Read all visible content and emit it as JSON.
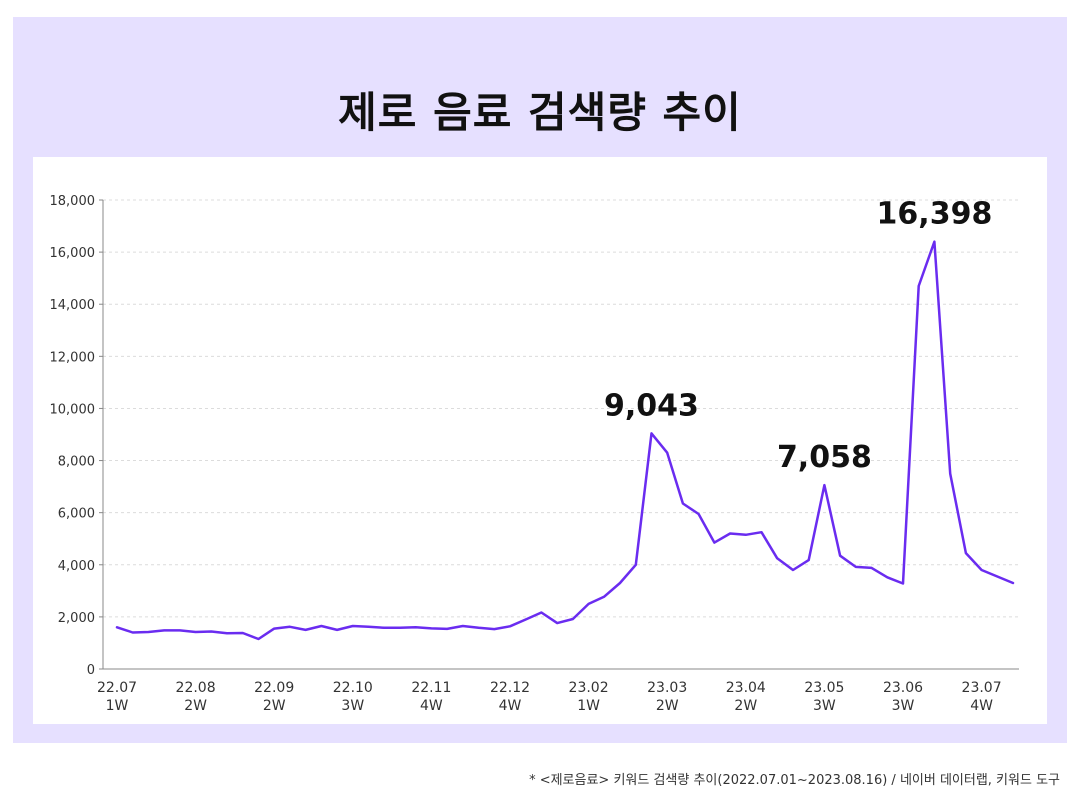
{
  "title": "제로 음료 검색량 추이",
  "footnote": "* <제로음료> 키워드 검색량 추이(2022.07.01~2023.08.16) / 네이버 데이터랩, 키워드 도구",
  "colors": {
    "background": "#e6e0ff",
    "line": "#6a2cf0",
    "panel": "#ffffff"
  },
  "chart_data": {
    "type": "line",
    "ylim": [
      0,
      18000
    ],
    "yticks": [
      "0",
      "2,000",
      "4,000",
      "6,000",
      "8,000",
      "10,000",
      "12,000",
      "14,000",
      "16,000",
      "18,000"
    ],
    "ytick_values": [
      0,
      2000,
      4000,
      6000,
      8000,
      10000,
      12000,
      14000,
      16000,
      18000
    ],
    "xtick_labels": [
      {
        "top": "22.07",
        "bottom": "1W",
        "index": 0
      },
      {
        "top": "22.08",
        "bottom": "2W",
        "index": 5
      },
      {
        "top": "22.09",
        "bottom": "2W",
        "index": 10
      },
      {
        "top": "22.10",
        "bottom": "3W",
        "index": 15
      },
      {
        "top": "22.11",
        "bottom": "4W",
        "index": 20
      },
      {
        "top": "22.12",
        "bottom": "4W",
        "index": 25
      },
      {
        "top": "23.02",
        "bottom": "1W",
        "index": 30
      },
      {
        "top": "23.03",
        "bottom": "2W",
        "index": 35
      },
      {
        "top": "23.04",
        "bottom": "2W",
        "index": 40
      },
      {
        "top": "23.05",
        "bottom": "3W",
        "index": 45
      },
      {
        "top": "23.06",
        "bottom": "3W",
        "index": 50
      },
      {
        "top": "23.07",
        "bottom": "4W",
        "index": 55
      }
    ],
    "grid": true,
    "values": [
      1600,
      1400,
      1420,
      1480,
      1480,
      1420,
      1440,
      1370,
      1380,
      1150,
      1550,
      1620,
      1500,
      1650,
      1500,
      1650,
      1620,
      1580,
      1580,
      1600,
      1560,
      1540,
      1650,
      1580,
      1530,
      1640,
      1900,
      2170,
      1760,
      1920,
      2500,
      2780,
      3300,
      4000,
      9043,
      8300,
      6350,
      5950,
      4850,
      5200,
      5150,
      5250,
      4250,
      3800,
      4180,
      7058,
      4350,
      3920,
      3880,
      3520,
      3280,
      14700,
      16398,
      7500,
      4450,
      3800,
      3550,
      3300
    ],
    "annotations": [
      {
        "index": 34,
        "label": "9,043"
      },
      {
        "index": 45,
        "label": "7,058"
      },
      {
        "index": 52,
        "label": "16,398"
      }
    ]
  }
}
